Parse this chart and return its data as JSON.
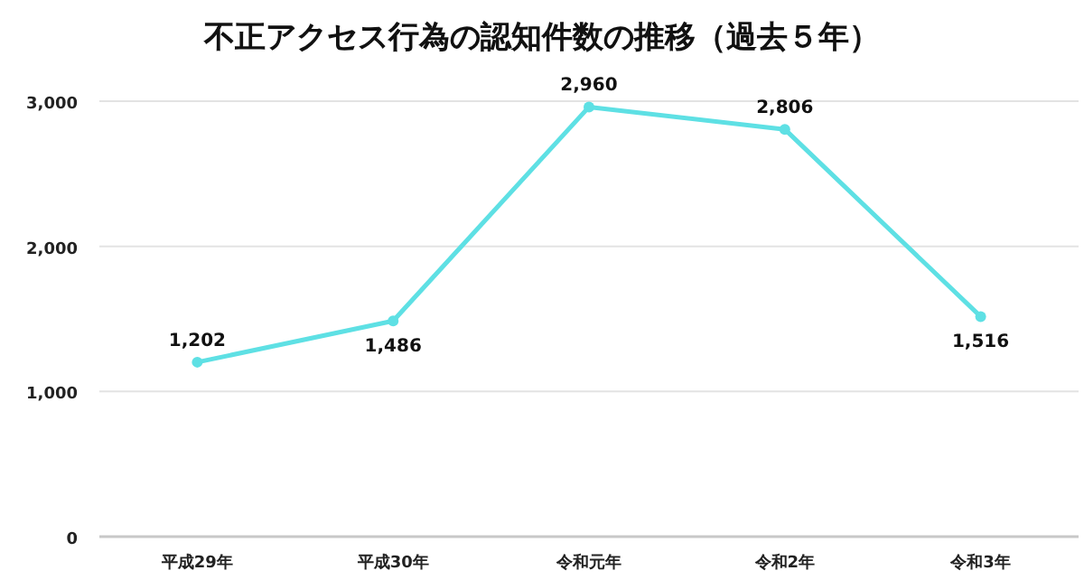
{
  "chart_data": {
    "type": "line",
    "title": "不正アクセス行為の認知件数の推移（過去５年）",
    "categories": [
      "平成29年",
      "平成30年",
      "令和元年",
      "令和2年",
      "令和3年"
    ],
    "series": [
      {
        "color": "#5ee0e4",
        "values": [
          1202,
          1486,
          2960,
          2806,
          1516
        ],
        "value_labels": [
          "1,202",
          "1,486",
          "2,960",
          "2,806",
          "1,516"
        ]
      }
    ],
    "ylim": [
      0,
      3000
    ],
    "yticks": [
      {
        "value": 0,
        "label": "0"
      },
      {
        "value": 1000,
        "label": "1,000"
      },
      {
        "value": 2000,
        "label": "2,000"
      },
      {
        "value": 3000,
        "label": "3,000"
      }
    ],
    "grid": "y",
    "marker": "circle",
    "line_style": "solid"
  }
}
